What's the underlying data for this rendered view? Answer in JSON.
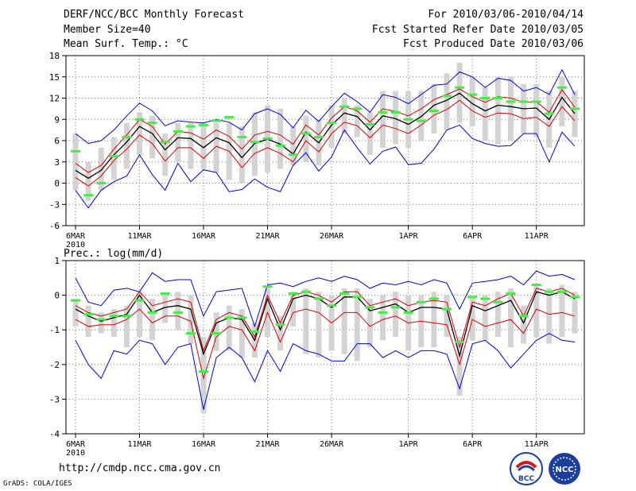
{
  "header": {
    "title": "DERF/NCC/BCC Monthly Forecast",
    "member_size": "Member Size=40",
    "variable": "Mean Surf. Temp.: °C",
    "period": "For 2010/03/06-2010/04/14",
    "start_date": "Fcst Started Refer Date 2010/03/05",
    "produced_date": "Fcst Produced Date 2010/03/06"
  },
  "footer": {
    "url": "http://cmdp.ncc.cma.gov.cn",
    "grads": "GrADS: COLA/IGES",
    "logo_left_text": "BCC",
    "logo_right_text": "NCC"
  },
  "colors": {
    "max_line": "#0000dd",
    "min_line": "#0000dd",
    "upper_line": "#dd0000",
    "lower_line": "#dd0000",
    "mean_line": "#000000",
    "bar": "#d3d3d3",
    "obs": "#44ee44",
    "grid": "#777777"
  },
  "chart_data": [
    {
      "type": "line",
      "title": "",
      "ylabel": "Mean Surf. Temp.: °C",
      "ylim": [
        -6,
        18
      ],
      "yticks": [
        -6,
        -3,
        0,
        3,
        6,
        9,
        12,
        15,
        18
      ],
      "x_start_label_year": "2010",
      "xtick_labels": [
        "6MAR",
        "11MAR",
        "16MAR",
        "21MAR",
        "26MAR",
        "1APR",
        "6APR",
        "11APR"
      ],
      "xtick_days": [
        1,
        6,
        11,
        16,
        21,
        27,
        32,
        37
      ],
      "days": [
        1,
        2,
        3,
        4,
        5,
        6,
        7,
        8,
        9,
        10,
        11,
        12,
        13,
        14,
        15,
        16,
        17,
        18,
        19,
        20,
        21,
        22,
        23,
        24,
        25,
        26,
        27,
        28,
        29,
        30,
        31,
        32,
        33,
        34,
        35,
        36,
        37,
        38,
        39,
        40
      ],
      "series": [
        {
          "name": "max",
          "values": [
            7,
            5.6,
            6,
            7.5,
            9.5,
            11.3,
            10.2,
            8.1,
            8.8,
            8.6,
            8.5,
            9,
            8.6,
            7.5,
            9.8,
            10.5,
            9.7,
            7.8,
            10.3,
            8.7,
            10.8,
            12.7,
            11.5,
            10,
            12.5,
            12.1,
            11.2,
            12.5,
            13.8,
            14,
            15.7,
            15,
            13.5,
            14.8,
            14.5,
            13,
            13.5,
            12.5,
            16,
            12.5
          ]
        },
        {
          "name": "upper",
          "values": [
            2.8,
            1.5,
            2.5,
            4.8,
            6.8,
            9,
            8,
            5.5,
            7.3,
            7.1,
            6.2,
            7.5,
            6.6,
            4.8,
            6.8,
            7.3,
            6.8,
            5.5,
            8.2,
            6.8,
            9.2,
            10.8,
            10.2,
            8.6,
            10.5,
            10.1,
            9.5,
            10.5,
            11.8,
            12.5,
            13.3,
            12.2,
            11.4,
            12.2,
            12,
            11.4,
            11.5,
            10,
            13.2,
            10.7
          ]
        },
        {
          "name": "mean",
          "values": [
            1.8,
            0.7,
            1.8,
            4,
            5.8,
            8,
            7,
            4.7,
            6.4,
            6.3,
            5,
            6.4,
            5.7,
            3.6,
            5.6,
            6.2,
            5.5,
            4.1,
            7.2,
            5.7,
            8.2,
            9.9,
            9.4,
            7.5,
            9.5,
            9.1,
            8.3,
            9.4,
            11,
            11.7,
            12.7,
            11.2,
            10.2,
            11,
            10.8,
            10.5,
            10.6,
            9,
            12.1,
            9.8
          ]
        },
        {
          "name": "lower",
          "values": [
            0.8,
            -0.4,
            1,
            3.2,
            4.8,
            6.8,
            5.6,
            3.1,
            5,
            5,
            3.5,
            5.2,
            4.5,
            2.2,
            4.2,
            5,
            4.2,
            3,
            6,
            4.4,
            7,
            8.6,
            8.1,
            6.4,
            8.2,
            7.7,
            7,
            8.2,
            9.6,
            10.4,
            11.7,
            10.2,
            9.3,
            9.9,
            9.8,
            9.1,
            9.3,
            8,
            10.8,
            8.8
          ]
        },
        {
          "name": "min",
          "values": [
            -1,
            -3.5,
            -1,
            0.2,
            1,
            4,
            1.2,
            -1,
            2.8,
            0.2,
            1.9,
            1.5,
            -1.2,
            -0.9,
            0.6,
            -0.6,
            -1.2,
            2.5,
            4.3,
            1.7,
            3.7,
            7.5,
            5,
            2.7,
            4.5,
            5.1,
            2.6,
            2.8,
            4.8,
            7.5,
            8.2,
            6.3,
            5.6,
            5.2,
            5.3,
            7,
            7,
            3,
            7.2,
            5.2
          ]
        },
        {
          "name": "bar_high",
          "values": [
            7,
            3,
            5,
            6.5,
            8.5,
            10,
            9.5,
            7,
            8.5,
            8.5,
            8.5,
            8.5,
            8.5,
            8,
            10,
            11,
            10.5,
            8,
            9.5,
            9,
            11,
            12,
            11,
            10,
            13,
            13,
            13,
            13,
            14,
            15.5,
            17,
            15,
            13.5,
            15,
            15,
            14,
            14,
            13,
            15,
            13
          ]
        },
        {
          "name": "bar_low",
          "values": [
            -1,
            -2.5,
            -1,
            0.5,
            2,
            4,
            3.5,
            1,
            3,
            2,
            2,
            1.5,
            0.5,
            0,
            1,
            1.5,
            2,
            2.5,
            3,
            2.5,
            5,
            7,
            6.5,
            4,
            5,
            5.5,
            5,
            6,
            7,
            7.5,
            8.5,
            8,
            6,
            5.5,
            6,
            7,
            6.5,
            5,
            8,
            6.5
          ]
        },
        {
          "name": "obs",
          "values": [
            4.5,
            -1.7,
            0,
            3.8,
            6.5,
            9,
            8.5,
            5.8,
            7.3,
            8,
            8.2,
            8.8,
            9.3,
            6.5,
            5.8,
            6.3,
            5.3,
            4,
            7,
            6.5,
            8.5,
            10.8,
            10.5,
            8.3,
            10,
            10,
            9,
            8.8,
            10.2,
            12.3,
            13.5,
            12.5,
            12,
            12,
            11.5,
            11.5,
            11.5,
            9.8,
            13.5,
            10.5
          ]
        }
      ]
    },
    {
      "type": "line",
      "title": "",
      "ylabel": "Prec.: log(mm/d)",
      "ylim": [
        -4,
        1
      ],
      "yticks": [
        -4,
        -3,
        -2,
        -1,
        0,
        1
      ],
      "x_start_label_year": "2010",
      "xtick_labels": [
        "6MAR",
        "11MAR",
        "16MAR",
        "21MAR",
        "26MAR",
        "1APR",
        "6APR",
        "11APR"
      ],
      "xtick_days": [
        1,
        6,
        11,
        16,
        21,
        27,
        32,
        37
      ],
      "days": [
        1,
        2,
        3,
        4,
        5,
        6,
        7,
        8,
        9,
        10,
        11,
        12,
        13,
        14,
        15,
        16,
        17,
        18,
        19,
        20,
        21,
        22,
        23,
        24,
        25,
        26,
        27,
        28,
        29,
        30,
        31,
        32,
        33,
        34,
        35,
        36,
        37,
        38,
        39,
        40
      ],
      "series": [
        {
          "name": "max",
          "values": [
            0.5,
            -0.2,
            -0.3,
            0.15,
            0.2,
            0.1,
            0.65,
            0.4,
            0.45,
            0.45,
            -0.6,
            0.1,
            0.15,
            0.2,
            -0.9,
            0.3,
            0.35,
            0.25,
            0.4,
            0.5,
            0.4,
            0.55,
            0.45,
            0.2,
            0.35,
            0.3,
            0.4,
            0.3,
            0.45,
            0.35,
            -0.4,
            0.35,
            0.4,
            0.45,
            0.55,
            0.3,
            0.7,
            0.55,
            0.6,
            0.45
          ]
        },
        {
          "name": "upper",
          "values": [
            -0.3,
            -0.5,
            -0.6,
            -0.5,
            -0.4,
            0.1,
            -0.3,
            -0.2,
            -0.1,
            -0.2,
            -1.6,
            -0.7,
            -0.5,
            -0.6,
            -1.2,
            0,
            -0.8,
            0,
            0.1,
            0,
            -0.2,
            0.1,
            0.1,
            -0.3,
            -0.2,
            -0.1,
            -0.3,
            -0.2,
            -0.15,
            -0.2,
            -1.5,
            -0.2,
            -0.3,
            -0.1,
            0.05,
            -0.6,
            0.2,
            0.1,
            0.2,
            0
          ]
        },
        {
          "name": "mean",
          "values": [
            -0.4,
            -0.6,
            -0.75,
            -0.65,
            -0.55,
            0,
            -0.5,
            -0.35,
            -0.3,
            -0.4,
            -1.7,
            -0.8,
            -0.65,
            -0.7,
            -1.3,
            -0.1,
            -1,
            -0.1,
            0,
            -0.1,
            -0.35,
            -0.05,
            -0.05,
            -0.45,
            -0.35,
            -0.25,
            -0.5,
            -0.35,
            -0.35,
            -0.4,
            -1.75,
            -0.3,
            -0.45,
            -0.3,
            -0.15,
            -0.8,
            0.1,
            0,
            0.1,
            -0.1
          ]
        },
        {
          "name": "lower",
          "values": [
            -0.7,
            -0.9,
            -0.85,
            -0.85,
            -0.7,
            -0.4,
            -0.8,
            -0.6,
            -0.6,
            -0.75,
            -2.4,
            -1.2,
            -0.9,
            -1,
            -1.6,
            -0.5,
            -1.35,
            -0.5,
            -0.4,
            -0.5,
            -0.8,
            -0.5,
            -0.5,
            -0.9,
            -0.7,
            -0.6,
            -0.8,
            -0.75,
            -0.8,
            -0.85,
            -2,
            -0.7,
            -0.9,
            -0.8,
            -0.7,
            -1.1,
            -0.4,
            -0.55,
            -0.5,
            -0.6
          ]
        },
        {
          "name": "min",
          "values": [
            -1.3,
            -2,
            -2.4,
            -1.6,
            -1.7,
            -1.3,
            -1.4,
            -2,
            -1.5,
            -1.4,
            -3.3,
            -1.8,
            -1.5,
            -1.8,
            -2.5,
            -1.6,
            -2.2,
            -1.4,
            -1.6,
            -1.7,
            -1.9,
            -1.9,
            -1.4,
            -1.4,
            -1.8,
            -1.6,
            -1.8,
            -1.6,
            -1.6,
            -1.7,
            -2.7,
            -1.4,
            -1.3,
            -1.6,
            -2.1,
            -1.7,
            -1.3,
            -1.1,
            -1.3,
            -1.35
          ]
        },
        {
          "name": "bar_high",
          "values": [
            -0.1,
            -0.3,
            -0.5,
            -0.4,
            -0.3,
            0.1,
            -0.1,
            0,
            0.1,
            0,
            -1.2,
            -0.5,
            -0.3,
            -0.4,
            -0.8,
            0.2,
            -0.6,
            0.1,
            0.2,
            0.1,
            0,
            0.2,
            0.2,
            -0.1,
            0,
            0.1,
            0,
            0,
            0.1,
            0,
            -1.2,
            0,
            0,
            0.1,
            0.2,
            -0.3,
            0.3,
            0.2,
            0.3,
            0.1
          ]
        },
        {
          "name": "bar_low",
          "values": [
            -0.9,
            -1.2,
            -1.1,
            -1.2,
            -1.5,
            -1.2,
            -1.3,
            -0.8,
            -1,
            -1.4,
            -3.4,
            -1.6,
            -1.6,
            -1.8,
            -1.8,
            -1.2,
            -1.6,
            -0.9,
            -1.7,
            -1.8,
            -1.6,
            -1.7,
            -1.9,
            -1.5,
            -1.3,
            -1.2,
            -1.6,
            -1.5,
            -1.5,
            -1.2,
            -2.9,
            -1.3,
            -1.3,
            -1.2,
            -1.5,
            -1.4,
            -1.2,
            -1.4,
            -1.2,
            -1.1
          ]
        },
        {
          "name": "obs",
          "values": [
            -0.15,
            -0.55,
            -0.7,
            -0.6,
            -0.6,
            -0.15,
            -0.5,
            0.05,
            -0.5,
            -1.1,
            -2.2,
            -1.1,
            -0.65,
            -0.65,
            -1.05,
            0.25,
            -0.85,
            0.05,
            0.1,
            -0.1,
            -0.3,
            0.05,
            -0.05,
            -0.35,
            -0.5,
            -0.35,
            -0.5,
            -0.2,
            -0.1,
            -0.4,
            -1.35,
            -0.05,
            -0.1,
            -0.2,
            0.05,
            -0.6,
            0.3,
            0.1,
            0.1,
            -0.05
          ]
        }
      ]
    }
  ]
}
